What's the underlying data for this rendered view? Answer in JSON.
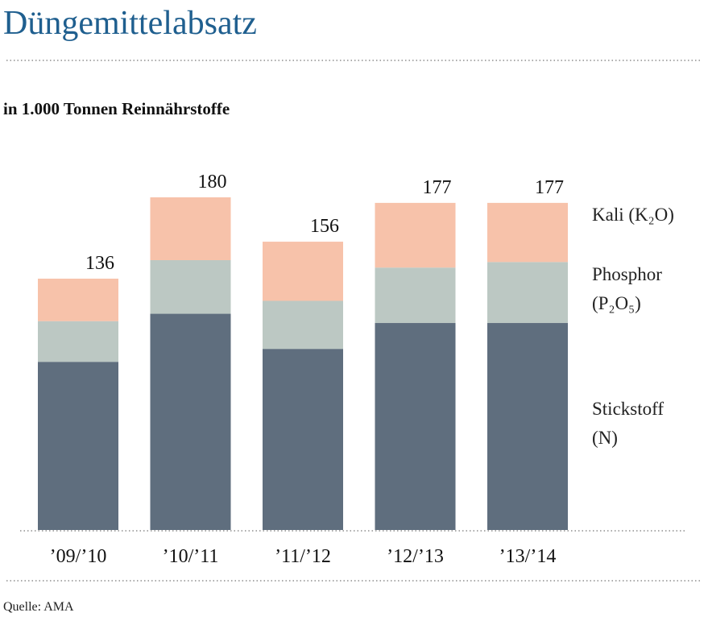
{
  "chart_data": {
    "type": "stacked_bar",
    "title": "Düngemittelabsatz",
    "subtitle": "in 1.000 Tonnen Reinnährstoffe",
    "categories": [
      "’09/’10",
      "’10/’11",
      "’11/’12",
      "’12/’13",
      "’13/’14"
    ],
    "series": [
      {
        "name": "Stickstoff (N)",
        "color": "#5f6e7e",
        "values": [
          91,
          117,
          98,
          112,
          112
        ]
      },
      {
        "name": "Phosphor (P₂O₅)",
        "color": "#bcc8c3",
        "values": [
          22,
          29,
          26,
          30,
          33
        ]
      },
      {
        "name": "Kali (K₂O)",
        "color": "#f7c2aa",
        "values": [
          23,
          34,
          32,
          35,
          32
        ]
      }
    ],
    "totals": [
      136,
      180,
      156,
      177,
      177
    ],
    "ylim": [
      0,
      180
    ],
    "source": "Quelle: AMA"
  }
}
